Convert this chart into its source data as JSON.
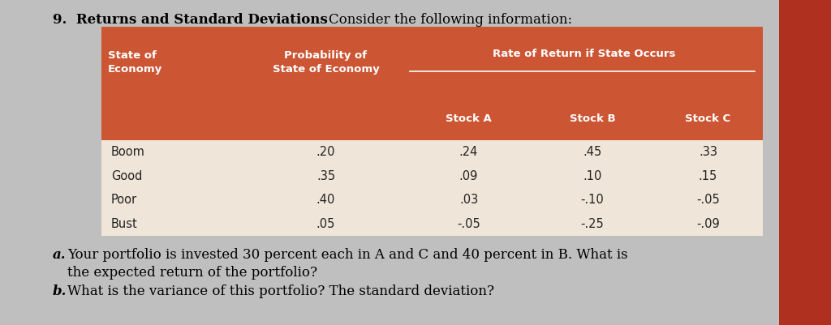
{
  "title_bold": "9.  Returns and Standard Deviations",
  "title_normal": "Consider the following information:",
  "states": [
    "Boom",
    "Good",
    "Poor",
    "Bust"
  ],
  "probabilities": [
    ".20",
    ".35",
    ".40",
    ".05"
  ],
  "stock_a": [
    ".24",
    ".09",
    ".03",
    "-.05"
  ],
  "stock_b": [
    ".45",
    ".10",
    "-.10",
    "-.25"
  ],
  "stock_c": [
    ".33",
    ".15",
    "-.05",
    "-.09"
  ],
  "qa_bold": "a.",
  "qa_rest": "  Your portfolio is invested 30 percent each in A and C and 40 percent in B. What is",
  "qa_line2": "   the expected return of the portfolio?",
  "qb_bold": "b.",
  "qb_rest": "  What is the variance of this portfolio? The standard deviation?",
  "header_bg": "#CC5533",
  "header_text": "#FFFFFF",
  "table_bg": "#EFE5D8",
  "page_bg": "#BFBFBF",
  "body_text_color": "#222222",
  "right_sidebar": "#B03020"
}
